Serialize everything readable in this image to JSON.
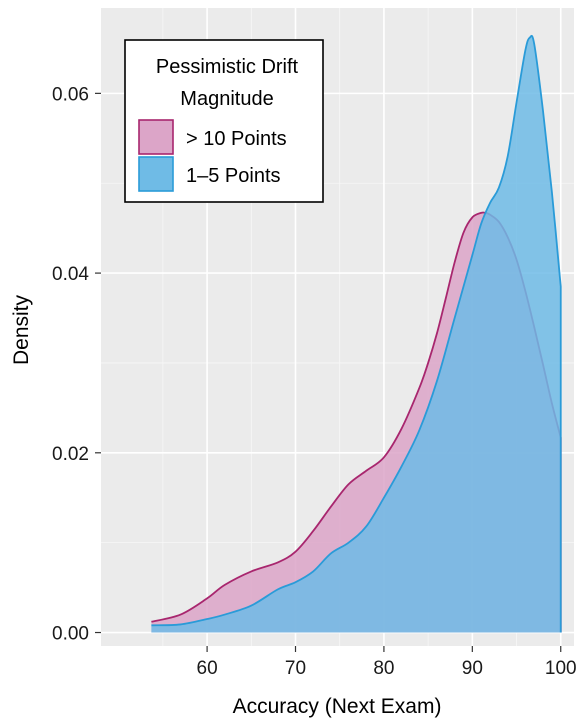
{
  "chart_data": {
    "type": "area",
    "title": "",
    "xlabel": "Accuracy (Next Exam)",
    "ylabel": "Density",
    "xlim": [
      48,
      101.5
    ],
    "ylim": [
      -0.0015,
      0.0695
    ],
    "x_ticks": [
      60,
      70,
      80,
      90,
      100
    ],
    "y_ticks": [
      0.0,
      0.02,
      0.04,
      0.06
    ],
    "x_tick_labels": [
      "60",
      "70",
      "80",
      "90",
      "100"
    ],
    "y_tick_labels": [
      "0.00",
      "0.02",
      "0.04",
      "0.06"
    ],
    "grid": true,
    "legend": {
      "title_line1": "Pessimistic Drift",
      "title_line2": "Magnitude",
      "position": "top-left"
    },
    "series": [
      {
        "name": "> 10 Points",
        "fill": "#dca5c8",
        "stroke": "#a8266e",
        "x": [
          53.7,
          57,
          60,
          62,
          65,
          68,
          70,
          72,
          74,
          76,
          78,
          80,
          82,
          84,
          85,
          86,
          87,
          88,
          89,
          90,
          91,
          91.5,
          92,
          93,
          94,
          95,
          96,
          97,
          98,
          99,
          100
        ],
        "y": [
          0.0012,
          0.002,
          0.0038,
          0.0053,
          0.0068,
          0.0078,
          0.009,
          0.0113,
          0.014,
          0.0165,
          0.018,
          0.0195,
          0.0227,
          0.0272,
          0.03,
          0.0333,
          0.0372,
          0.0412,
          0.0445,
          0.0462,
          0.0467,
          0.0467,
          0.0465,
          0.0457,
          0.044,
          0.0415,
          0.038,
          0.034,
          0.0298,
          0.0255,
          0.0217
        ]
      },
      {
        "name": "1–5 Points",
        "fill": "#6fbbe6",
        "stroke": "#2a9bd8",
        "x": [
          53.7,
          57,
          60,
          62,
          65,
          68,
          70,
          72,
          74,
          76,
          78,
          80,
          82,
          84,
          86,
          88,
          90,
          91,
          92,
          93,
          94,
          95,
          96,
          96.5,
          97,
          98,
          99,
          100
        ],
        "y": [
          0.0008,
          0.0009,
          0.0015,
          0.002,
          0.003,
          0.0048,
          0.0056,
          0.0068,
          0.0088,
          0.01,
          0.0118,
          0.015,
          0.0185,
          0.0225,
          0.028,
          0.035,
          0.042,
          0.0455,
          0.0478,
          0.0495,
          0.053,
          0.059,
          0.0648,
          0.0662,
          0.0655,
          0.058,
          0.049,
          0.0385
        ]
      }
    ]
  }
}
